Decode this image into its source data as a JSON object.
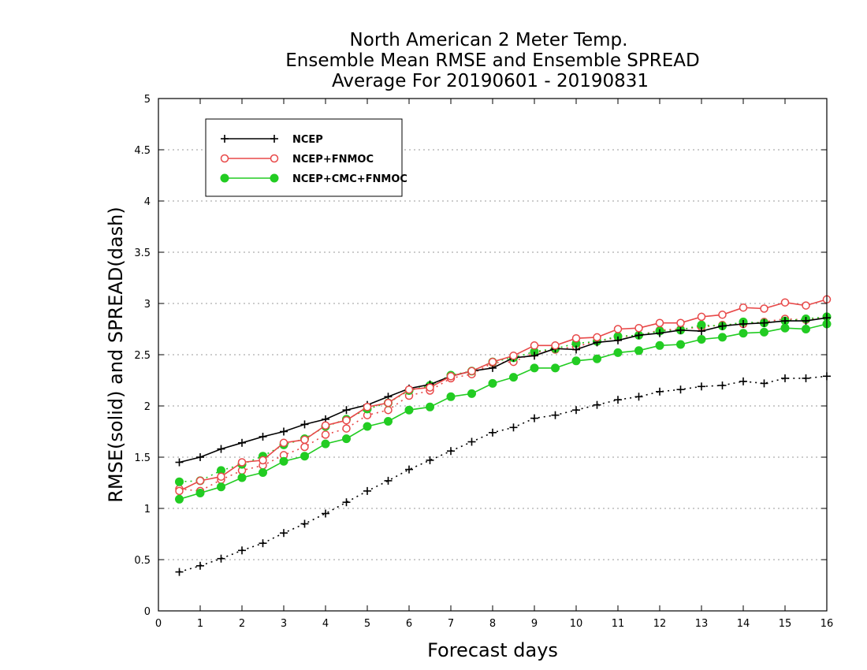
{
  "chart_data": {
    "type": "line",
    "title": [
      "North American 2 Meter Temp.",
      "Ensemble Mean RMSE and Ensemble SPREAD",
      "Average For 20190601 - 20190831"
    ],
    "xlabel": "Forecast days",
    "ylabel": "RMSE(solid) and SPREAD(dash)",
    "xlim": [
      0,
      16
    ],
    "ylim": [
      0,
      5
    ],
    "xticks": [
      "0",
      "1",
      "2",
      "3",
      "4",
      "5",
      "6",
      "7",
      "8",
      "9",
      "10",
      "11",
      "12",
      "13",
      "14",
      "15",
      "16"
    ],
    "yticks": [
      "0",
      "0.5",
      "1",
      "1.5",
      "2",
      "2.5",
      "3",
      "3.5",
      "4",
      "4.5",
      "5"
    ],
    "grid": true,
    "legend_position": "top-left",
    "x": [
      0.5,
      1,
      1.5,
      2,
      2.5,
      3,
      3.5,
      4,
      4.5,
      5,
      5.5,
      6,
      6.5,
      7,
      7.5,
      8,
      8.5,
      9,
      9.5,
      10,
      10.5,
      11,
      11.5,
      12,
      12.5,
      13,
      13.5,
      14,
      14.5,
      15,
      15.5,
      16
    ],
    "series": [
      {
        "name": "NCEP",
        "color": "#000000",
        "marker": "plus",
        "rmse": [
          1.45,
          1.5,
          1.58,
          1.64,
          1.7,
          1.75,
          1.82,
          1.87,
          1.96,
          2.01,
          2.09,
          2.17,
          2.21,
          2.29,
          2.34,
          2.37,
          2.47,
          2.49,
          2.56,
          2.55,
          2.62,
          2.64,
          2.69,
          2.71,
          2.74,
          2.73,
          2.78,
          2.8,
          2.81,
          2.83,
          2.83,
          2.86
        ],
        "spread": [
          0.38,
          0.44,
          0.51,
          0.59,
          0.66,
          0.76,
          0.85,
          0.95,
          1.06,
          1.17,
          1.27,
          1.38,
          1.47,
          1.56,
          1.65,
          1.74,
          1.79,
          1.88,
          1.91,
          1.96,
          2.01,
          2.06,
          2.09,
          2.14,
          2.16,
          2.19,
          2.2,
          2.24,
          2.22,
          2.27,
          2.27,
          2.29
        ]
      },
      {
        "name": "NCEP+FNMOC",
        "color": "#e84848",
        "marker": "open-circle",
        "rmse": [
          1.17,
          1.27,
          1.31,
          1.45,
          1.47,
          1.64,
          1.67,
          1.81,
          1.86,
          1.99,
          2.03,
          2.16,
          2.18,
          2.29,
          2.34,
          2.43,
          2.49,
          2.59,
          2.59,
          2.66,
          2.67,
          2.75,
          2.76,
          2.81,
          2.81,
          2.87,
          2.89,
          2.96,
          2.95,
          3.01,
          2.98,
          3.04
        ],
        "spread": [
          1.19,
          1.17,
          1.28,
          1.37,
          1.42,
          1.52,
          1.6,
          1.72,
          1.78,
          1.91,
          1.96,
          2.1,
          2.15,
          2.27,
          2.31,
          2.42,
          2.43,
          2.52,
          2.55,
          2.58,
          2.63,
          2.67,
          2.69,
          2.74,
          2.75,
          2.77,
          2.79,
          2.8,
          2.82,
          2.85,
          2.84,
          2.87
        ]
      },
      {
        "name": "NCEP+CMC+FNMOC",
        "color": "#22cc22",
        "marker": "filled-circle",
        "rmse": [
          1.09,
          1.15,
          1.21,
          1.3,
          1.35,
          1.46,
          1.51,
          1.63,
          1.68,
          1.8,
          1.85,
          1.96,
          1.99,
          2.09,
          2.12,
          2.22,
          2.28,
          2.37,
          2.37,
          2.44,
          2.46,
          2.52,
          2.54,
          2.59,
          2.6,
          2.65,
          2.67,
          2.71,
          2.72,
          2.76,
          2.75,
          2.8
        ],
        "spread": [
          1.26,
          1.27,
          1.37,
          1.43,
          1.51,
          1.62,
          1.68,
          1.8,
          1.87,
          1.97,
          2.03,
          2.15,
          2.2,
          2.3,
          2.34,
          2.43,
          2.47,
          2.53,
          2.56,
          2.61,
          2.63,
          2.68,
          2.69,
          2.73,
          2.74,
          2.79,
          2.78,
          2.82,
          2.81,
          2.83,
          2.85,
          2.87
        ]
      }
    ]
  }
}
